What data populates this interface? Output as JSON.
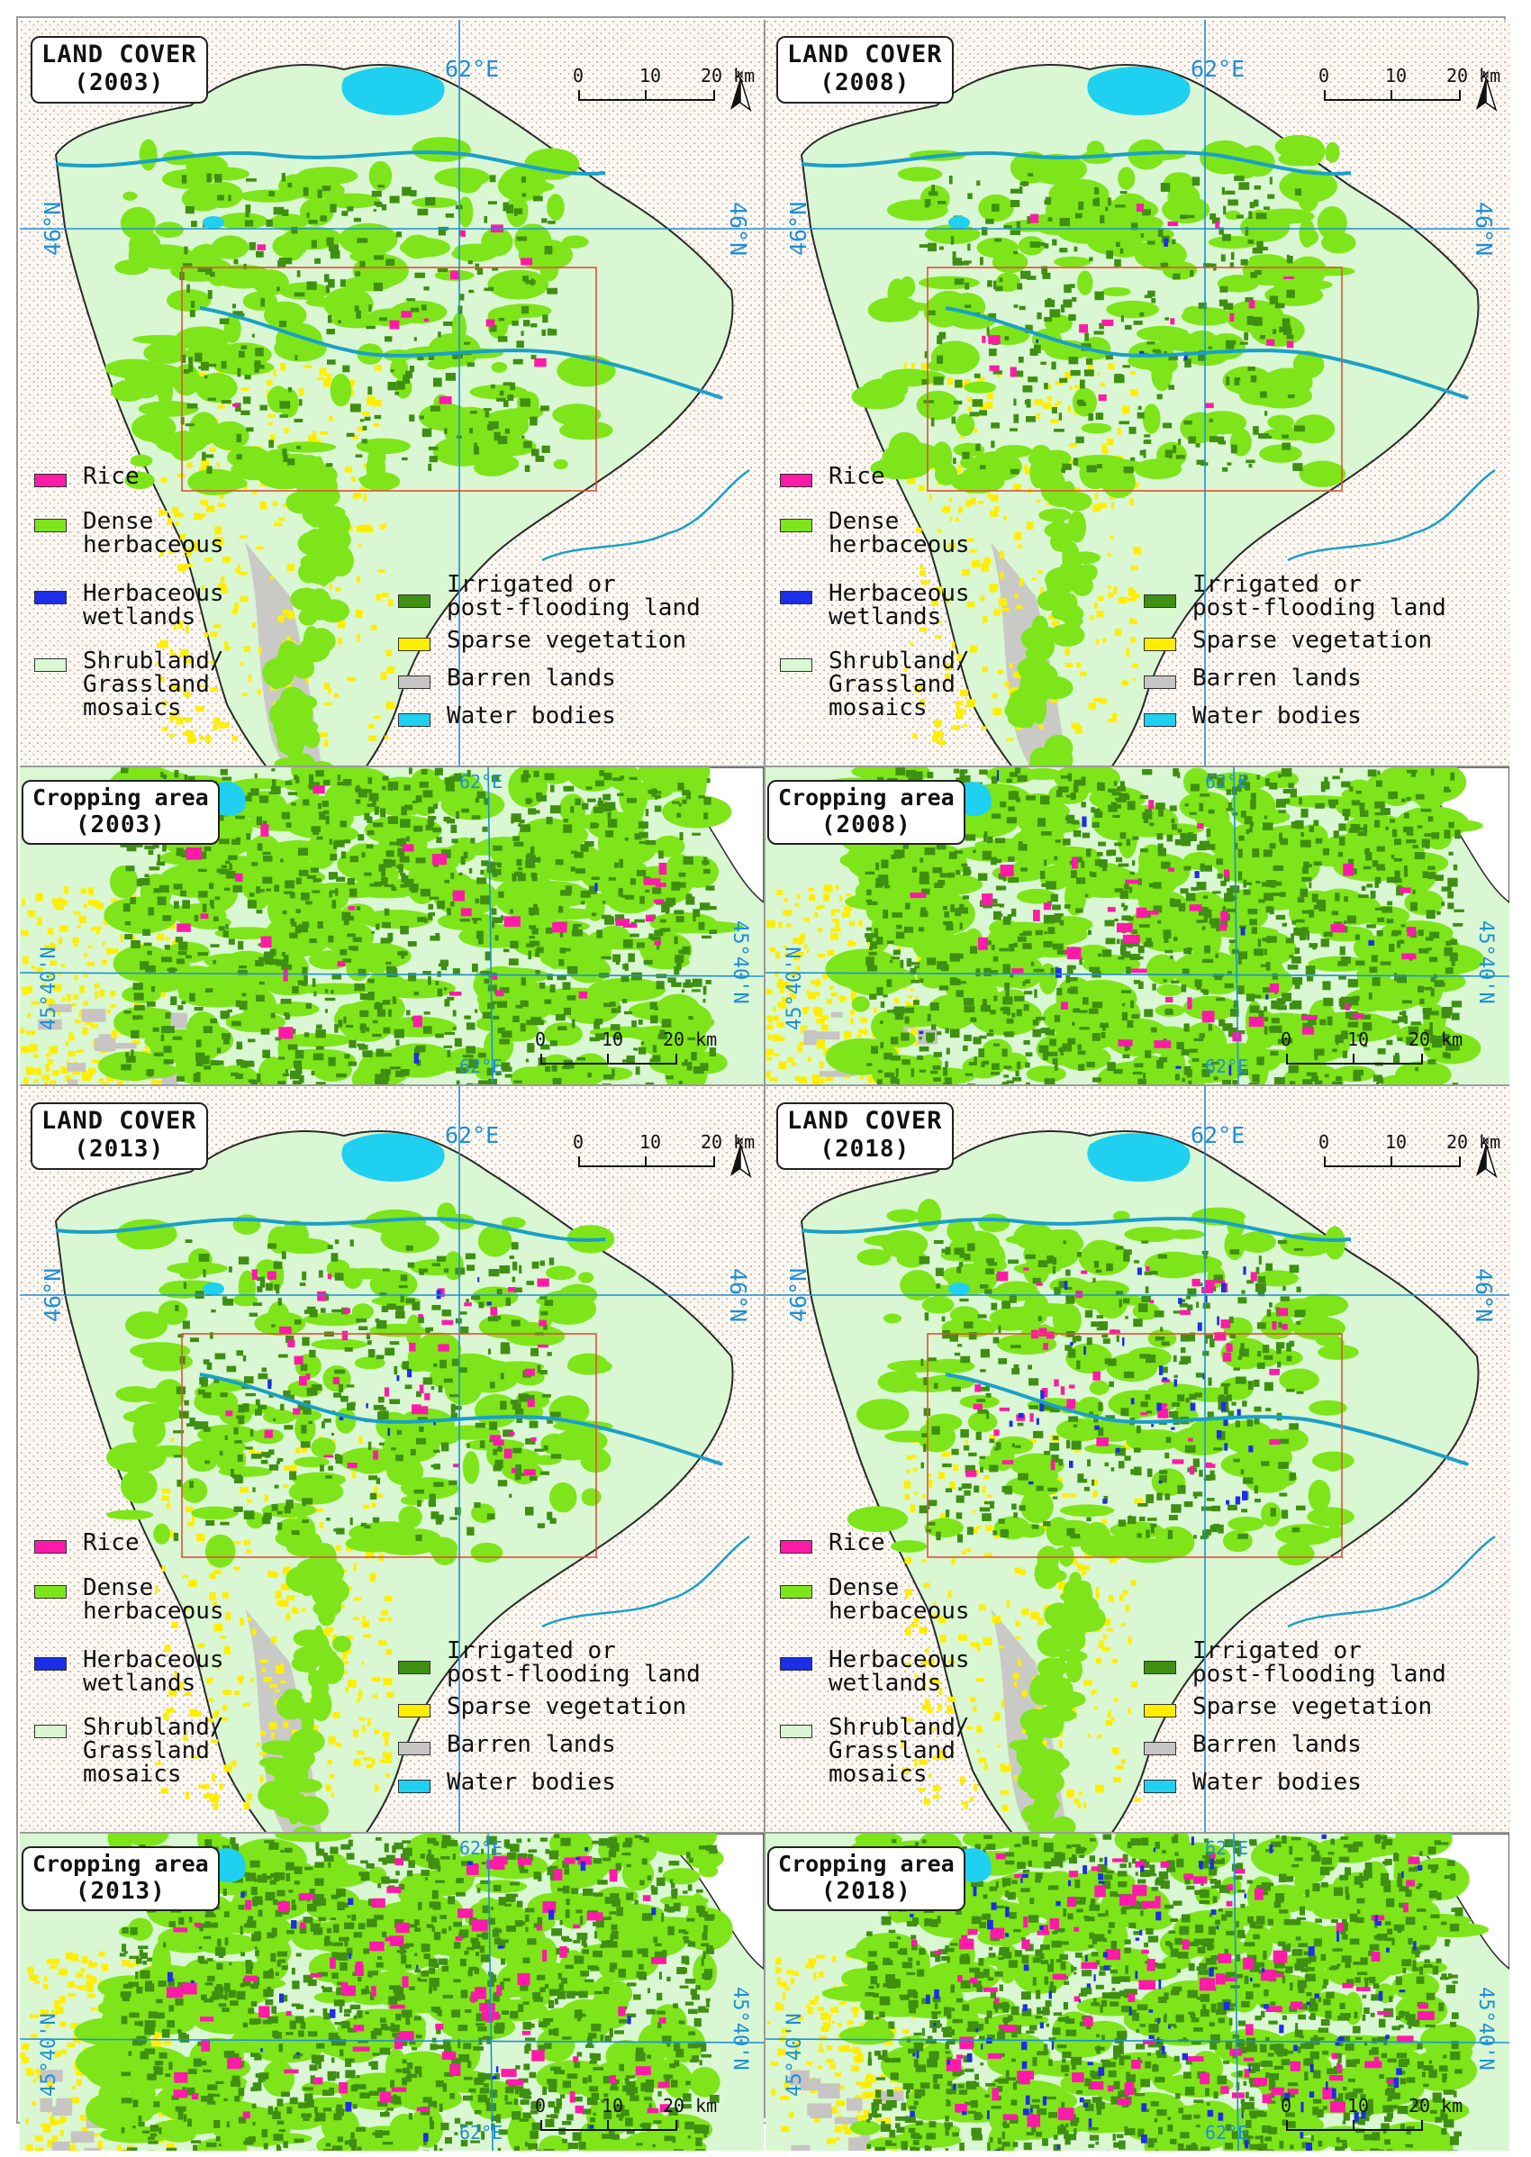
{
  "panels": [
    {
      "land_cover": {
        "title": "LAND COVER",
        "year": "(2003)"
      },
      "cropping": {
        "title": "Cropping area",
        "year": "(2003)"
      }
    },
    {
      "land_cover": {
        "title": "LAND COVER",
        "year": "(2008)"
      },
      "cropping": {
        "title": "Cropping area",
        "year": "(2008)"
      }
    },
    {
      "land_cover": {
        "title": "LAND COVER",
        "year": "(2013)"
      },
      "cropping": {
        "title": "Cropping area",
        "year": "(2013)"
      }
    },
    {
      "land_cover": {
        "title": "LAND COVER",
        "year": "(2018)"
      },
      "cropping": {
        "title": "Cropping area",
        "year": "(2018)"
      }
    }
  ],
  "coordinates": {
    "lon_62": "62°E",
    "lat_46": "46°N",
    "lat_4540": "45°40'N"
  },
  "scale": {
    "land_cover": {
      "ticks": [
        "0",
        "10",
        "20 km"
      ]
    },
    "cropping": {
      "ticks": [
        "0",
        "10",
        "20 km"
      ]
    }
  },
  "north_label": "N",
  "legend": {
    "left": [
      {
        "label": "Rice",
        "color": "#ff1aa8"
      },
      {
        "label": "Dense\nherbaceous",
        "color": "#7ee51a"
      },
      {
        "label": "Herbaceous\nwetlands",
        "color": "#1c2ee6"
      },
      {
        "label": "Shrubland/\nGrassland\nmosaics",
        "color": "#d9f7d2"
      }
    ],
    "right": [
      {
        "label": "Irrigated or\npost-flooding land",
        "color": "#3f8f12"
      },
      {
        "label": "Sparse vegetation",
        "color": "#ffee00"
      },
      {
        "label": "Barren lands",
        "color": "#c7c4c4"
      },
      {
        "label": "Water bodies",
        "color": "#1fd0f0"
      }
    ]
  },
  "colors": {
    "rice": "#ff1aa8",
    "dense_herbaceous": "#7ee51a",
    "herbaceous_wetlands": "#1c2ee6",
    "shrub_grass": "#d9f7d2",
    "irrigated": "#3f8f12",
    "sparse": "#ffee00",
    "barren": "#c7c4c4",
    "water": "#1fd0f0",
    "river": "#1aa0c8",
    "graticule": "#1f8fd6",
    "crop_frame": "#e0503a",
    "desert_dots": "#b58b6a"
  }
}
